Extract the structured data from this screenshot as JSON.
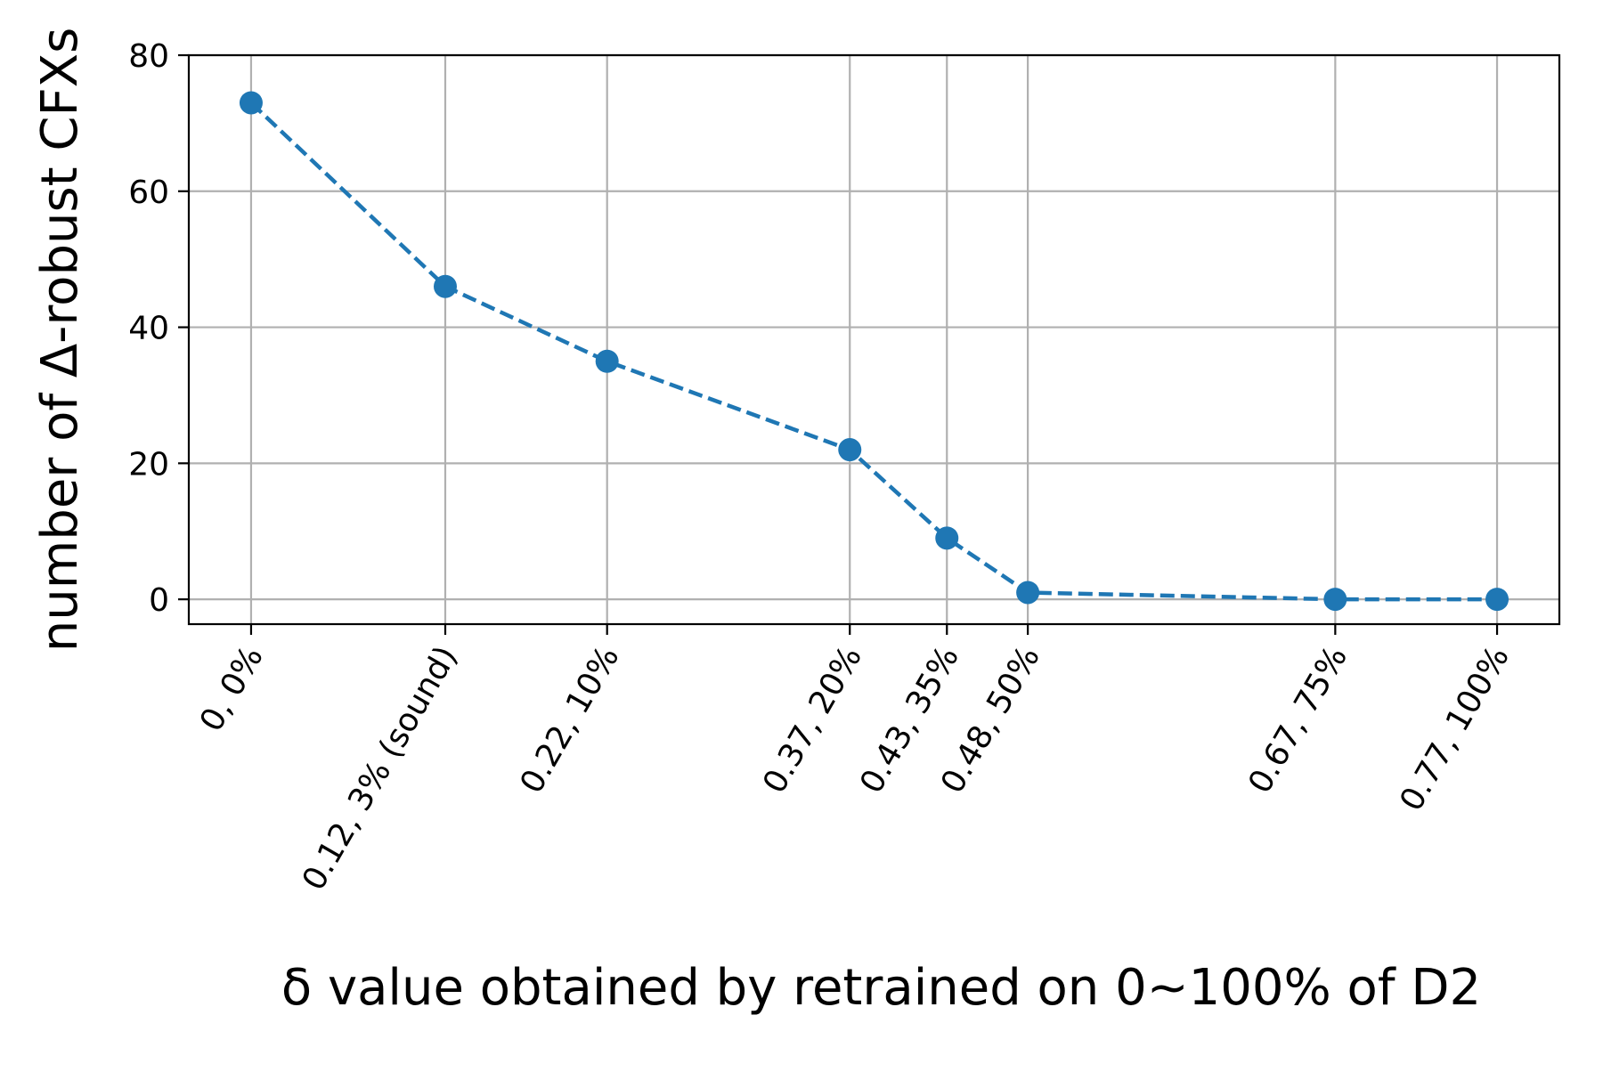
{
  "chart_data": {
    "type": "line",
    "x": [
      0,
      0.12,
      0.22,
      0.37,
      0.43,
      0.48,
      0.67,
      0.77
    ],
    "x_tick_labels": [
      "0, 0%",
      "0.12, 3% (sound)",
      "0.22, 10%",
      "0.37, 20%",
      "0.43, 35%",
      "0.48, 50%",
      "0.67, 75%",
      "0.77, 100%"
    ],
    "series": [
      {
        "values": [
          73,
          46,
          35,
          22,
          9,
          1,
          0,
          0
        ],
        "color": "#1f77b4",
        "linestyle": "dashed",
        "marker": "circle"
      }
    ],
    "xlabel": "δ value obtained by retrained on 0~100% of D2",
    "ylabel": "number of Δ-robust CFXs",
    "xlim": [
      -0.0385,
      0.8085
    ],
    "ylim": [
      -3.65,
      80
    ],
    "y_ticks": [
      0,
      20,
      40,
      60,
      80
    ],
    "grid": true,
    "x_tick_rotation": 60
  }
}
